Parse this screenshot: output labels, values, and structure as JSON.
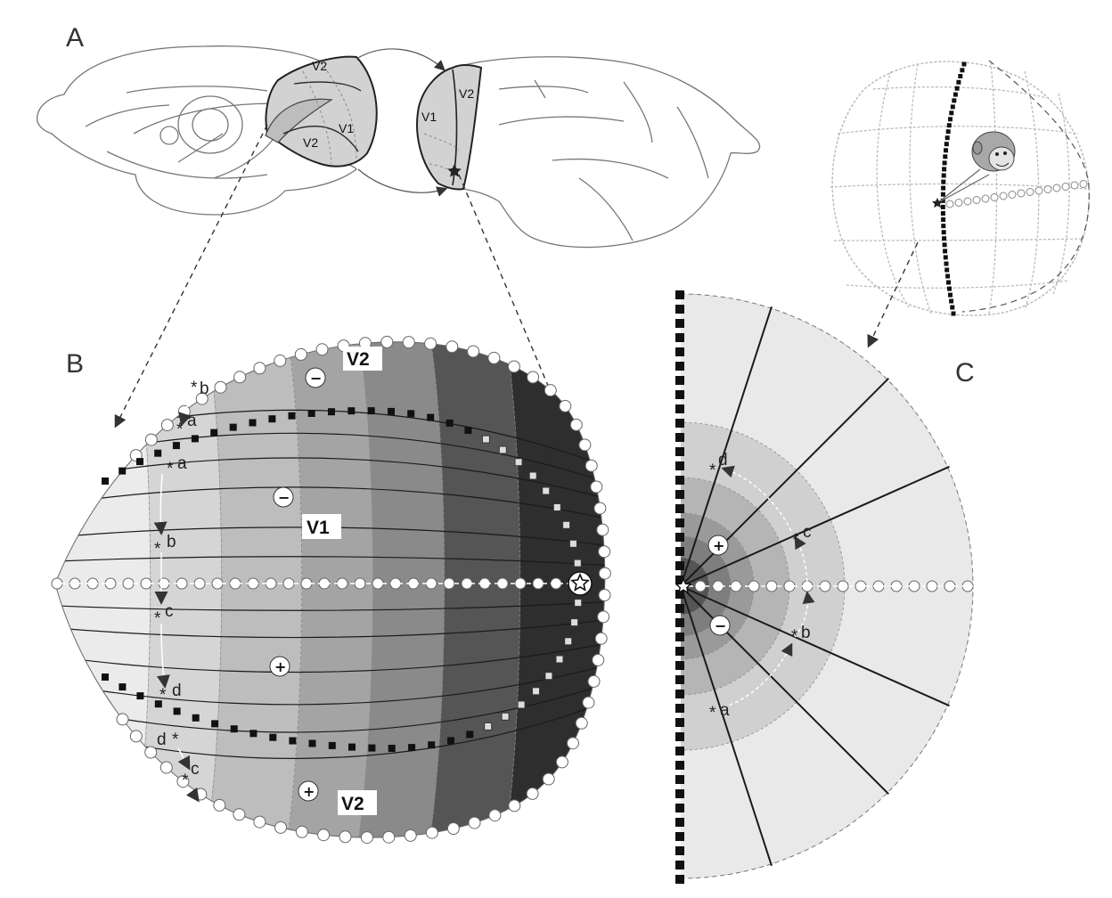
{
  "panels": {
    "a": {
      "letter": "A"
    },
    "b": {
      "letter": "B"
    },
    "c": {
      "letter": "C"
    }
  },
  "brain_labels": {
    "left_v2_top": "V2",
    "left_v1": "V1",
    "left_v2_bottom": "V2",
    "right_v1": "V1",
    "right_v2": "V2"
  },
  "map_b": {
    "v2_top": "V2",
    "v1": "V1",
    "v2_bottom": "V2",
    "minus_top": "−",
    "minus_mid": "−",
    "plus_mid": "+",
    "plus_bottom": "+",
    "points": {
      "v2_b": "b",
      "v2_a": "a",
      "v1_a": "a",
      "v1_b": "b",
      "v1_c": "c",
      "v1_d": "d",
      "low_d": "d",
      "low_c": "c"
    },
    "band_colors": [
      "#ebebeb",
      "#d5d5d5",
      "#bdbdbd",
      "#a4a4a4",
      "#8a8a8a",
      "#555555",
      "#2e2e2e"
    ]
  },
  "map_c": {
    "plus": "+",
    "minus": "−",
    "points": {
      "d": "d",
      "c": "c",
      "b": "b",
      "a": "a"
    },
    "ring_colors": [
      "#e9e9e9",
      "#d0d0d0",
      "#b5b5b5",
      "#9a9a9a",
      "#7e7e7e",
      "#555555"
    ]
  },
  "icons": {
    "star": "fovea-star-icon",
    "monkey": "monkey-head-icon",
    "vertical_meridian": "vertical-meridian-squares",
    "horizontal_meridian": "horizontal-meridian-circles"
  }
}
